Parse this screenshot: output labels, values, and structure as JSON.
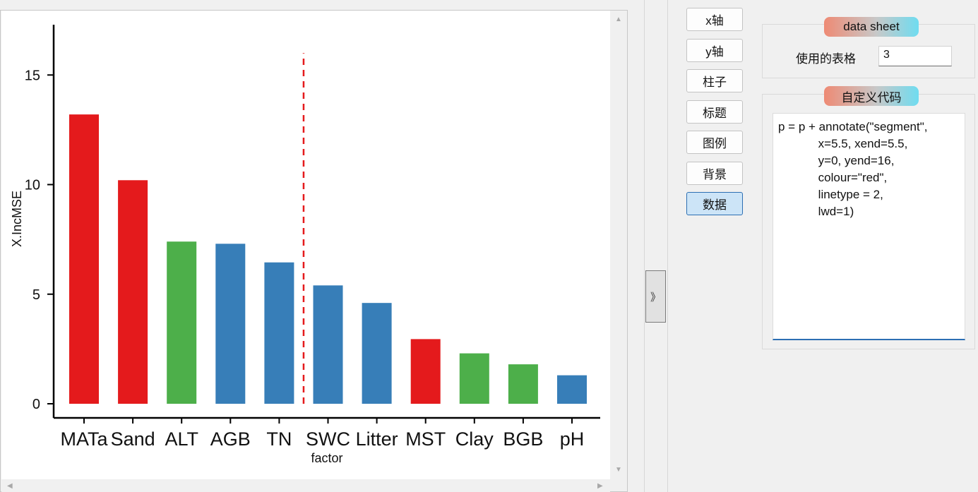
{
  "plot": {
    "chart_data": {
      "type": "bar",
      "categories": [
        "MATa",
        "Sand",
        "ALT",
        "AGB",
        "TN",
        "SWC",
        "Litter",
        "MST",
        "Clay",
        "BGB",
        "pH"
      ],
      "values": [
        13.2,
        10.2,
        7.4,
        7.3,
        6.45,
        5.4,
        4.6,
        2.95,
        2.3,
        1.8,
        1.3
      ],
      "bar_colors": [
        "#e41a1c",
        "#e41a1c",
        "#4daf4a",
        "#377eb8",
        "#377eb8",
        "#377eb8",
        "#377eb8",
        "#e41a1c",
        "#4daf4a",
        "#4daf4a",
        "#377eb8"
      ],
      "xlabel": "factor",
      "ylabel": "X.IncMSE",
      "ylim": [
        -0.6,
        17.5
      ],
      "yticks": [
        0,
        5,
        10,
        15
      ],
      "ytick_labels": [
        "0",
        "5",
        "10",
        "15"
      ],
      "grid": false,
      "annotation": {
        "type": "segment",
        "x": 5.5,
        "xend": 5.5,
        "y": 0,
        "yend": 16,
        "color": "#e41a1c",
        "linetype": "dashed"
      }
    }
  },
  "collapse_button": {
    "label": "》"
  },
  "nav": {
    "buttons": [
      {
        "label": "x轴"
      },
      {
        "label": "y轴"
      },
      {
        "label": "柱子"
      },
      {
        "label": "标题"
      },
      {
        "label": "图例"
      },
      {
        "label": "背景"
      },
      {
        "label": "数据",
        "active": true
      }
    ]
  },
  "data_sheet": {
    "title": "data sheet",
    "table_label": "使用的表格",
    "table_value": "3"
  },
  "custom_code": {
    "title": "自定义代码",
    "code": "p = p + annotate(\"segment\",\n            x=5.5, xend=5.5,\n            y=0, yend=16,\n            colour=\"red\",\n            linetype = 2,\n            lwd=1)"
  }
}
